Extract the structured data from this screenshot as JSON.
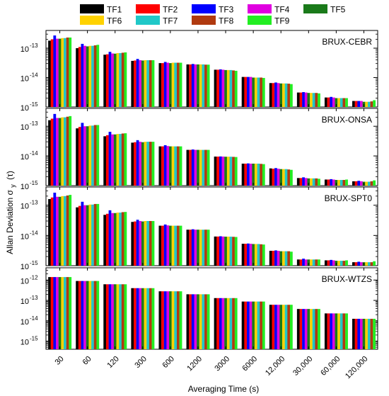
{
  "legend": {
    "entries": [
      {
        "label": "TF1",
        "color": "#000000"
      },
      {
        "label": "TF2",
        "color": "#ff0000"
      },
      {
        "label": "TF3",
        "color": "#0000ff"
      },
      {
        "label": "TF4",
        "color": "#e000e0"
      },
      {
        "label": "TF5",
        "color": "#1a7a1a"
      },
      {
        "label": "TF6",
        "color": "#ffd200"
      },
      {
        "label": "TF7",
        "color": "#20c8c8"
      },
      {
        "label": "TF8",
        "color": "#b03a10"
      },
      {
        "label": "TF9",
        "color": "#22ee22"
      }
    ]
  },
  "xlabel": "Averaging Time (s)",
  "ylabel_main": "Allan Deviation σ",
  "ylabel_sub": "y",
  "ylabel_tail": "(τ)",
  "ytick_base": "10",
  "ytick_exps": [
    "-15",
    "-14",
    "-13",
    "-12"
  ],
  "chart_data": [
    {
      "type": "bar",
      "title": "BRUX-CEBR",
      "yscale": "log",
      "ylim": [
        1e-15,
        4e-13
      ],
      "categories": [
        "30",
        "60",
        "120",
        "300",
        "600",
        "1200",
        "3000",
        "6000",
        "12,000",
        "30,000",
        "60,000",
        "120,000"
      ],
      "series": [
        {
          "name": "TF1",
          "values": [
            1.8e-13,
            1e-13,
            6e-14,
            3.7e-14,
            3.1e-14,
            2.8e-14,
            1.85e-14,
            1.05e-14,
            6.5e-15,
            3.1e-15,
            2.1e-15,
            1.6e-15
          ]
        },
        {
          "name": "TF2",
          "values": [
            2e-13,
            1.1e-13,
            6.2e-14,
            3.8e-14,
            3.1e-14,
            2.8e-14,
            1.85e-14,
            1.05e-14,
            6.5e-15,
            3.1e-15,
            2.1e-15,
            1.6e-15
          ]
        },
        {
          "name": "TF3",
          "values": [
            2.7e-13,
            1.4e-13,
            7.5e-14,
            4.3e-14,
            3.4e-14,
            2.9e-14,
            1.9e-14,
            1.05e-14,
            6.8e-15,
            3.2e-15,
            2.2e-15,
            1.6e-15
          ]
        },
        {
          "name": "TF4",
          "values": [
            2.1e-13,
            1.2e-13,
            6.6e-14,
            3.9e-14,
            3.2e-14,
            2.8e-14,
            1.85e-14,
            1.05e-14,
            6.5e-15,
            3.1e-15,
            2.1e-15,
            1.6e-15
          ]
        },
        {
          "name": "TF5",
          "values": [
            2.1e-13,
            1.15e-13,
            6.5e-14,
            3.8e-14,
            3.1e-14,
            2.8e-14,
            1.8e-14,
            1e-14,
            6.3e-15,
            3e-15,
            2e-15,
            1.5e-15
          ]
        },
        {
          "name": "TF6",
          "values": [
            2.2e-13,
            1.2e-13,
            6.8e-14,
            3.9e-14,
            3.2e-14,
            2.8e-14,
            1.8e-14,
            1e-14,
            6.3e-15,
            3e-15,
            2e-15,
            1.5e-15
          ]
        },
        {
          "name": "TF7",
          "values": [
            2.2e-13,
            1.2e-13,
            6.8e-14,
            3.9e-14,
            3.2e-14,
            2.8e-14,
            1.8e-14,
            1e-14,
            6.3e-15,
            3e-15,
            2e-15,
            1.5e-15
          ]
        },
        {
          "name": "TF8",
          "values": [
            2.3e-13,
            1.25e-13,
            7e-14,
            3.9e-14,
            3.2e-14,
            2.75e-14,
            1.75e-14,
            1e-14,
            6.2e-15,
            3e-15,
            2e-15,
            1.55e-15
          ]
        },
        {
          "name": "TF9",
          "values": [
            2.3e-13,
            1.3e-13,
            7.2e-14,
            3.9e-14,
            3.2e-14,
            2.75e-14,
            1.7e-14,
            9.7e-15,
            6e-15,
            2.9e-15,
            2e-15,
            1.7e-15
          ]
        }
      ]
    },
    {
      "type": "bar",
      "title": "BRUX-ONSA",
      "yscale": "log",
      "ylim": [
        1e-15,
        4e-13
      ],
      "categories": [
        "30",
        "60",
        "120",
        "300",
        "600",
        "1200",
        "3000",
        "6000",
        "12,000",
        "30,000",
        "60,000",
        "120,000"
      ],
      "series": [
        {
          "name": "TF1",
          "values": [
            1.6e-13,
            8.5e-14,
            4.6e-14,
            2.8e-14,
            2.1e-14,
            1.6e-14,
            9.5e-15,
            5.5e-15,
            3.8e-15,
            1.8e-15,
            1.6e-15,
            1.4e-15
          ]
        },
        {
          "name": "TF2",
          "values": [
            1.8e-13,
            9.5e-14,
            5e-14,
            2.9e-14,
            2.1e-14,
            1.6e-14,
            9.5e-15,
            5.5e-15,
            3.7e-15,
            1.8e-15,
            1.6e-15,
            1.4e-15
          ]
        },
        {
          "name": "TF3",
          "values": [
            2.6e-13,
            1.3e-13,
            6.5e-14,
            3.4e-14,
            2.3e-14,
            1.65e-14,
            9.6e-15,
            5.6e-15,
            3.9e-15,
            1.9e-15,
            1.65e-15,
            1.45e-15
          ]
        },
        {
          "name": "TF4",
          "values": [
            1.9e-13,
            1e-13,
            5.3e-14,
            3e-14,
            2.15e-14,
            1.6e-14,
            9.5e-15,
            5.5e-15,
            3.7e-15,
            1.8e-15,
            1.6e-15,
            1.4e-15
          ]
        },
        {
          "name": "TF5",
          "values": [
            1.9e-13,
            1e-13,
            5.3e-14,
            2.9e-14,
            2.1e-14,
            1.6e-14,
            9.4e-15,
            5.5e-15,
            3.6e-15,
            1.75e-15,
            1.55e-15,
            1.35e-15
          ]
        },
        {
          "name": "TF6",
          "values": [
            2e-13,
            1.05e-13,
            5.5e-14,
            3e-14,
            2.1e-14,
            1.6e-14,
            9.4e-15,
            5.5e-15,
            3.6e-15,
            1.75e-15,
            1.55e-15,
            1.35e-15
          ]
        },
        {
          "name": "TF7",
          "values": [
            2e-13,
            1.05e-13,
            5.5e-14,
            3e-14,
            2.1e-14,
            1.6e-14,
            9.4e-15,
            5.5e-15,
            3.6e-15,
            1.75e-15,
            1.55e-15,
            1.35e-15
          ]
        },
        {
          "name": "TF8",
          "values": [
            2.1e-13,
            1.1e-13,
            5.7e-14,
            3e-14,
            2.1e-14,
            1.6e-14,
            9.3e-15,
            5.4e-15,
            3.5e-15,
            1.75e-15,
            1.55e-15,
            1.4e-15
          ]
        },
        {
          "name": "TF9",
          "values": [
            2.2e-13,
            1.1e-13,
            5.8e-14,
            3e-14,
            2.1e-14,
            1.6e-14,
            9.2e-15,
            5.3e-15,
            3.4e-15,
            1.7e-15,
            1.6e-15,
            1.5e-15
          ]
        }
      ]
    },
    {
      "type": "bar",
      "title": "BRUX-SPT0",
      "yscale": "log",
      "ylim": [
        1e-15,
        4e-13
      ],
      "categories": [
        "30",
        "60",
        "120",
        "300",
        "600",
        "1200",
        "3000",
        "6000",
        "12,000",
        "30,000",
        "60,000",
        "120,000"
      ],
      "series": [
        {
          "name": "TF1",
          "values": [
            1.6e-13,
            8.5e-14,
            4.8e-14,
            2.8e-14,
            2.1e-14,
            1.55e-14,
            9.2e-15,
            5.3e-15,
            3.1e-15,
            1.6e-15,
            1.5e-15,
            1.3e-15
          ]
        },
        {
          "name": "TF2",
          "values": [
            1.8e-13,
            9.5e-14,
            5.2e-14,
            2.9e-14,
            2.1e-14,
            1.55e-14,
            9.2e-15,
            5.3e-15,
            3.1e-15,
            1.6e-15,
            1.5e-15,
            1.3e-15
          ]
        },
        {
          "name": "TF3",
          "values": [
            2.6e-13,
            1.3e-13,
            6.8e-14,
            3.3e-14,
            2.3e-14,
            1.6e-14,
            9.4e-15,
            5.4e-15,
            3.2e-15,
            1.7e-15,
            1.55e-15,
            1.35e-15
          ]
        },
        {
          "name": "TF4",
          "values": [
            1.9e-13,
            1e-13,
            5.5e-14,
            3e-14,
            2.15e-14,
            1.55e-14,
            9.2e-15,
            5.3e-15,
            3.1e-15,
            1.6e-15,
            1.5e-15,
            1.3e-15
          ]
        },
        {
          "name": "TF5",
          "values": [
            1.9e-13,
            1e-13,
            5.5e-14,
            2.9e-14,
            2.1e-14,
            1.55e-14,
            9.1e-15,
            5.2e-15,
            3e-15,
            1.6e-15,
            1.45e-15,
            1.3e-15
          ]
        },
        {
          "name": "TF6",
          "values": [
            2e-13,
            1.05e-13,
            5.7e-14,
            3e-14,
            2.1e-14,
            1.55e-14,
            9.1e-15,
            5.2e-15,
            3e-15,
            1.6e-15,
            1.45e-15,
            1.3e-15
          ]
        },
        {
          "name": "TF7",
          "values": [
            2e-13,
            1.05e-13,
            5.7e-14,
            3e-14,
            2.1e-14,
            1.55e-14,
            9.1e-15,
            5.2e-15,
            3e-15,
            1.6e-15,
            1.45e-15,
            1.3e-15
          ]
        },
        {
          "name": "TF8",
          "values": [
            2.1e-13,
            1.1e-13,
            5.9e-14,
            3e-14,
            2.1e-14,
            1.55e-14,
            9e-15,
            5.1e-15,
            3e-15,
            1.6e-15,
            1.45e-15,
            1.3e-15
          ]
        },
        {
          "name": "TF9",
          "values": [
            2.2e-13,
            1.1e-13,
            6e-14,
            3e-14,
            2.1e-14,
            1.55e-14,
            8.9e-15,
            5e-15,
            2.9e-15,
            1.6e-15,
            1.5e-15,
            1.4e-15
          ]
        }
      ]
    },
    {
      "type": "bar",
      "title": "BRUX-WTZS",
      "yscale": "log",
      "ylim": [
        4e-16,
        4e-12
      ],
      "categories": [
        "30",
        "60",
        "120",
        "300",
        "600",
        "1200",
        "3000",
        "6000",
        "12,000",
        "30,000",
        "60,000",
        "120,000"
      ],
      "series": [
        {
          "name": "TF1",
          "values": [
            1.4e-12,
            9e-13,
            6.2e-13,
            4e-13,
            2.8e-13,
            2e-13,
            1.3e-13,
            8.8e-14,
            6.1e-14,
            3.8e-14,
            2.3e-14,
            1.25e-14
          ]
        },
        {
          "name": "TF2",
          "values": [
            1.4e-12,
            9e-13,
            6.2e-13,
            4e-13,
            2.8e-13,
            2e-13,
            1.3e-13,
            8.8e-14,
            6.1e-14,
            3.8e-14,
            2.3e-14,
            1.25e-14
          ]
        },
        {
          "name": "TF3",
          "values": [
            1.4e-12,
            9e-13,
            6.2e-13,
            4e-13,
            2.8e-13,
            2e-13,
            1.3e-13,
            8.8e-14,
            6.1e-14,
            3.8e-14,
            2.3e-14,
            1.25e-14
          ]
        },
        {
          "name": "TF4",
          "values": [
            1.4e-12,
            9e-13,
            6.2e-13,
            4e-13,
            2.8e-13,
            2e-13,
            1.3e-13,
            8.8e-14,
            6.1e-14,
            3.8e-14,
            2.3e-14,
            1.25e-14
          ]
        },
        {
          "name": "TF5",
          "values": [
            1.4e-12,
            9e-13,
            6.2e-13,
            4e-13,
            2.8e-13,
            2e-13,
            1.3e-13,
            8.8e-14,
            6.1e-14,
            3.8e-14,
            2.3e-14,
            1.25e-14
          ]
        },
        {
          "name": "TF6",
          "values": [
            1.4e-12,
            9e-13,
            6.2e-13,
            4e-13,
            2.8e-13,
            2e-13,
            1.3e-13,
            8.8e-14,
            6.1e-14,
            3.8e-14,
            2.3e-14,
            1.25e-14
          ]
        },
        {
          "name": "TF7",
          "values": [
            1.4e-12,
            9e-13,
            6.2e-13,
            4e-13,
            2.8e-13,
            2e-13,
            1.3e-13,
            8.8e-14,
            6.1e-14,
            3.8e-14,
            2.3e-14,
            1.25e-14
          ]
        },
        {
          "name": "TF8",
          "values": [
            1.4e-12,
            9e-13,
            6.2e-13,
            4e-13,
            2.8e-13,
            2e-13,
            1.3e-13,
            8.8e-14,
            6.1e-14,
            3.8e-14,
            2.3e-14,
            1.25e-14
          ]
        },
        {
          "name": "TF9",
          "values": [
            1.4e-12,
            9e-13,
            6.2e-13,
            4e-13,
            2.8e-13,
            2e-13,
            1.3e-13,
            8.8e-14,
            6.1e-14,
            3.8e-14,
            2.3e-14,
            1.25e-14
          ]
        }
      ]
    }
  ]
}
